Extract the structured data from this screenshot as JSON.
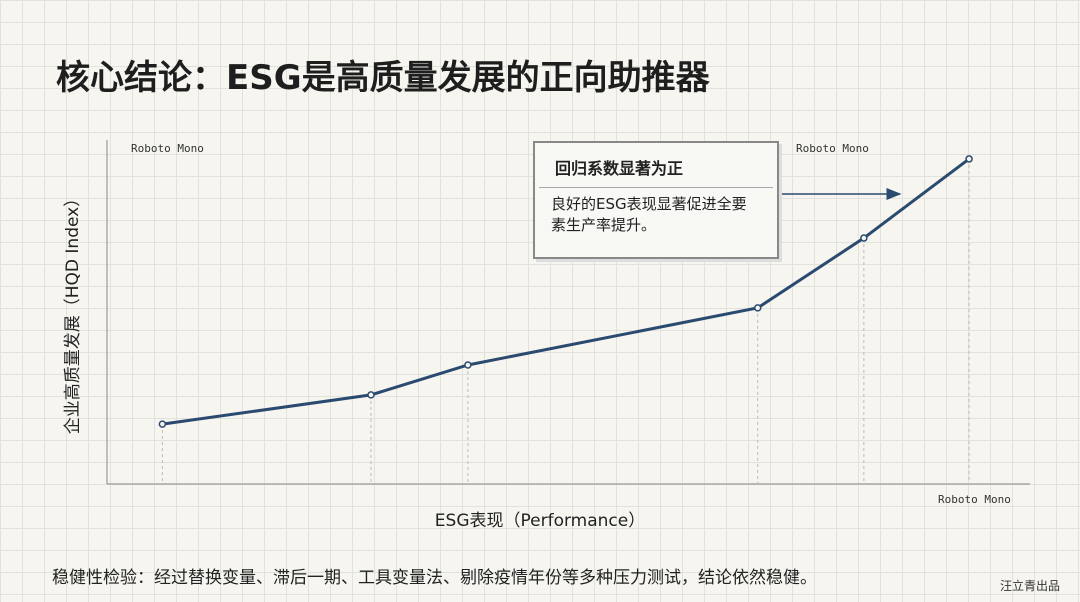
{
  "chart_data": {
    "type": "line",
    "title": "核心结论：ESG是高质量发展的正向助推器",
    "y_label": "企业高质量发展（HQD Index）",
    "x_label": "ESG表现（Performance）",
    "corner_labels": [
      "Roboto Mono",
      "Roboto Mono",
      "Roboto Mono"
    ],
    "x": [
      6,
      28.6,
      39.1,
      70.5,
      82,
      93.4
    ],
    "series": [
      {
        "color": "#2b4a6f",
        "values": [
          17.4,
          25.9,
          34.6,
          51.2,
          71.5,
          94.5
        ]
      }
    ],
    "xlim": [
      0,
      100
    ],
    "ylim": [
      0,
      100
    ],
    "callout": {
      "title": "回归系数显著为正",
      "text": "良好的ESG表现显著促进全要素生产率提升。"
    },
    "note": "稳健性检验：经过替换变量、滞后一期、工具变量法、剔除疫情年份等多种压力测试，结论依然稳健。"
  },
  "watermark": "汪立青出品"
}
